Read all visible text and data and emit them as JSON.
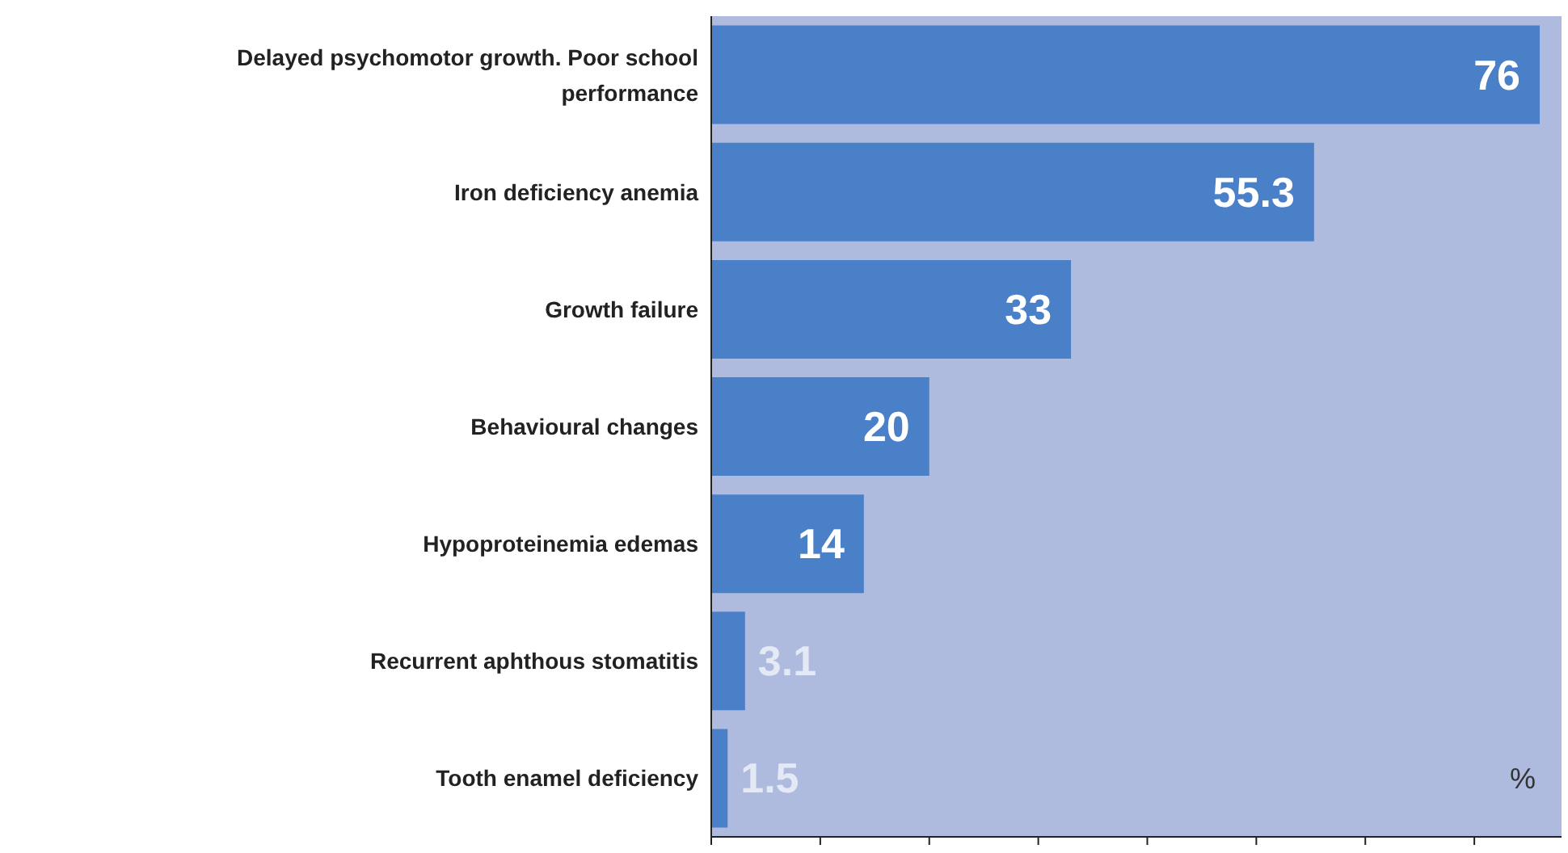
{
  "chart_data": {
    "type": "bar",
    "orientation": "horizontal",
    "xlabel": "%",
    "categories": [
      "Delayed psychomotor growth. Poor school performance",
      "Iron deficiency anemia",
      "Growth failure",
      "Behavioural changes",
      "Hypoproteinemia edemas",
      "Recurrent aphthous stomatitis",
      "Tooth enamel deficiency"
    ],
    "values": [
      76,
      55.3,
      33,
      20,
      14,
      3.1,
      1.5
    ],
    "color": "#4a80c8",
    "data_labels": true,
    "xlim": [
      0,
      78
    ],
    "xticks": [
      {
        "value": 0,
        "label": null
      },
      {
        "value": 10,
        "label": null
      },
      {
        "value": 20,
        "label": null
      },
      {
        "value": 30,
        "label": null
      },
      {
        "value": 40,
        "label": null
      },
      {
        "value": 50,
        "label": null
      },
      {
        "value": 60,
        "label": null
      },
      {
        "value": 70,
        "label": null
      }
    ]
  }
}
